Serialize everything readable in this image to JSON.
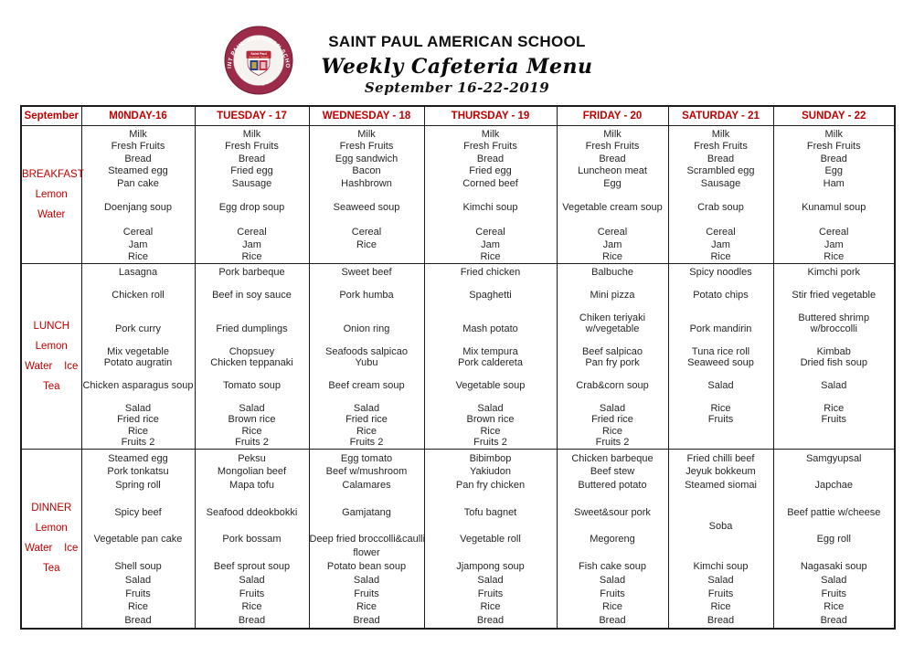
{
  "header": {
    "school_name": "SAINT PAUL AMERICAN SCHOOL",
    "subtitle": "Weekly Cafeteria Menu",
    "date_range": "September 16-22-2019",
    "logo": {
      "ring_text": "SAINT PAUL AMERICAN SCHOOL",
      "shield_line1": "Saint Paul",
      "shield_line2": "American School"
    }
  },
  "colors": {
    "accent_red": "#C00000",
    "logo_maroon": "#9c2b4a",
    "border_black": "#1c1c1c"
  },
  "table": {
    "corner_label": "September",
    "day_headers": [
      "M0NDAY-16",
      "TUESDAY - 17",
      "WEDNESDAY - 18",
      "THURSDAY - 19",
      "FRIDAY - 20",
      "SATURDAY - 21",
      "SUNDAY - 22"
    ],
    "meals": [
      {
        "id": "breakfast",
        "label_lines": [
          "BREAKFAST",
          "Lemon",
          "Water"
        ],
        "columns": [
          [
            "Milk",
            "Fresh Fruits",
            "Bread",
            "Steamed egg",
            "Pan cake",
            "",
            "Doenjang soup",
            "",
            "Cereal",
            "Jam",
            "Rice"
          ],
          [
            "Milk",
            "Fresh Fruits",
            "Bread",
            "Fried egg",
            "Sausage",
            "",
            "Egg drop soup",
            "",
            "Cereal",
            "Jam",
            "Rice"
          ],
          [
            "Milk",
            "Fresh Fruits",
            "Egg sandwich",
            "Bacon",
            "Hashbrown",
            "",
            "Seaweed soup",
            "",
            "Cereal",
            "Rice",
            ""
          ],
          [
            "Milk",
            "Fresh Fruits",
            "Bread",
            "Fried egg",
            "Corned beef",
            "",
            "Kimchi soup",
            "",
            "Cereal",
            "Jam",
            "Rice"
          ],
          [
            "Milk",
            "Fresh Fruits",
            "Bread",
            "Luncheon meat",
            "Egg",
            "",
            "Vegetable cream soup",
            "",
            "Cereal",
            "Jam",
            "Rice"
          ],
          [
            "Milk",
            "Fresh Fruits",
            "Bread",
            "Scrambled egg",
            "Sausage",
            "",
            "Crab soup",
            "",
            "Cereal",
            "Jam",
            "Rice"
          ],
          [
            "Milk",
            "Fresh Fruits",
            "Bread",
            "Egg",
            "Ham",
            "",
            "Kunamul soup",
            "",
            "Cereal",
            "Jam",
            "Rice"
          ]
        ]
      },
      {
        "id": "lunch",
        "label_lines": [
          "LUNCH",
          "Lemon",
          "Water    Ice",
          "Tea"
        ],
        "columns": [
          [
            "Lasagna",
            "",
            "Chicken roll",
            "",
            "",
            "Pork curry",
            "",
            "Mix vegetable",
            "Potato augratin",
            "",
            "Chicken asparagus soup",
            "",
            "Salad",
            "Fried rice",
            "Rice",
            "Fruits 2"
          ],
          [
            "Pork barbeque",
            "",
            "Beef in soy sauce",
            "",
            "",
            "Fried dumplings",
            "",
            "Chopsuey",
            "Chicken teppanaki",
            "",
            "Tomato soup",
            "",
            "Salad",
            "Brown rice",
            "Rice",
            "Fruits 2"
          ],
          [
            "Sweet beef",
            "",
            "Pork humba",
            "",
            "",
            "Onion ring",
            "",
            "Seafoods salpicao",
            "Yubu",
            "",
            "Beef cream soup",
            "",
            "Salad",
            "Fried rice",
            "Rice",
            "Fruits 2"
          ],
          [
            "Fried chicken",
            "",
            "Spaghetti",
            "",
            "",
            "Mash potato",
            "",
            "Mix tempura",
            "Pork caldereta",
            "",
            "Vegetable soup",
            "",
            "Salad",
            "Brown rice",
            "Rice",
            "Fruits 2"
          ],
          [
            "Balbuche",
            "",
            "Mini pizza",
            "",
            "Chiken teriyaki",
            "w/vegetable",
            "",
            "Beef salpicao",
            "Pan fry pork",
            "",
            "Crab&corn soup",
            "",
            "Salad",
            "Fried rice",
            "Rice",
            "Fruits 2"
          ],
          [
            "Spicy noodles",
            "",
            "Potato chips",
            "",
            "",
            "Pork mandirin",
            "",
            "Tuna rice roll",
            "Seaweed soup",
            "",
            "Salad",
            "",
            "Rice",
            "Fruits",
            "",
            ""
          ],
          [
            "Kimchi pork",
            "",
            "Stir fried vegetable",
            "",
            "Buttered shrimp",
            "w/broccolli",
            "",
            "Kimbab",
            "Dried fish soup",
            "",
            "Salad",
            "",
            "Rice",
            "Fruits",
            "",
            ""
          ]
        ]
      },
      {
        "id": "dinner",
        "label_lines": [
          "DINNER",
          "Lemon",
          "Water    Ice",
          "Tea"
        ],
        "columns": [
          [
            "Steamed egg",
            "Pork tonkatsu",
            "Spring roll",
            "",
            "Spicy beef",
            "",
            "Vegetable pan cake",
            "",
            "Shell soup",
            "Salad",
            "Fruits",
            "Rice",
            "Bread"
          ],
          [
            "Peksu",
            "Mongolian beef",
            "Mapa tofu",
            "",
            "Seafood ddeokbokki",
            "",
            "Pork bossam",
            "",
            "Beef sprout soup",
            "Salad",
            "Fruits",
            "Rice",
            "Bread"
          ],
          [
            "Egg tomato",
            "Beef w/mushroom",
            "Calamares",
            "",
            "Gamjatang",
            "",
            "Deep fried broccolli&caulli",
            "flower",
            "Potato bean soup",
            "Salad",
            "Fruits",
            "Rice",
            "Bread"
          ],
          [
            "Bibimbop",
            "Yakiudon",
            "Pan fry chicken",
            "",
            "Tofu bagnet",
            "",
            "Vegetable roll",
            "",
            "Jjampong soup",
            "Salad",
            "Fruits",
            "Rice",
            "Bread"
          ],
          [
            "Chicken barbeque",
            "Beef stew",
            "Buttered potato",
            "",
            "Sweet&sour pork",
            "",
            "Megoreng",
            "",
            "Fish cake soup",
            "Salad",
            "Fruits",
            "Rice",
            "Bread"
          ],
          [
            "Fried chilli beef",
            "Jeyuk bokkeum",
            "Steamed siomai",
            "",
            "",
            "Soba",
            "",
            "",
            "Kimchi soup",
            "Salad",
            "Fruits",
            "Rice",
            "Bread"
          ],
          [
            "Samgyupsal",
            "",
            "Japchae",
            "",
            "Beef pattie w/cheese",
            "",
            "Egg roll",
            "",
            "Nagasaki soup",
            "Salad",
            "Fruits",
            "Rice",
            "Bread"
          ]
        ]
      }
    ]
  }
}
